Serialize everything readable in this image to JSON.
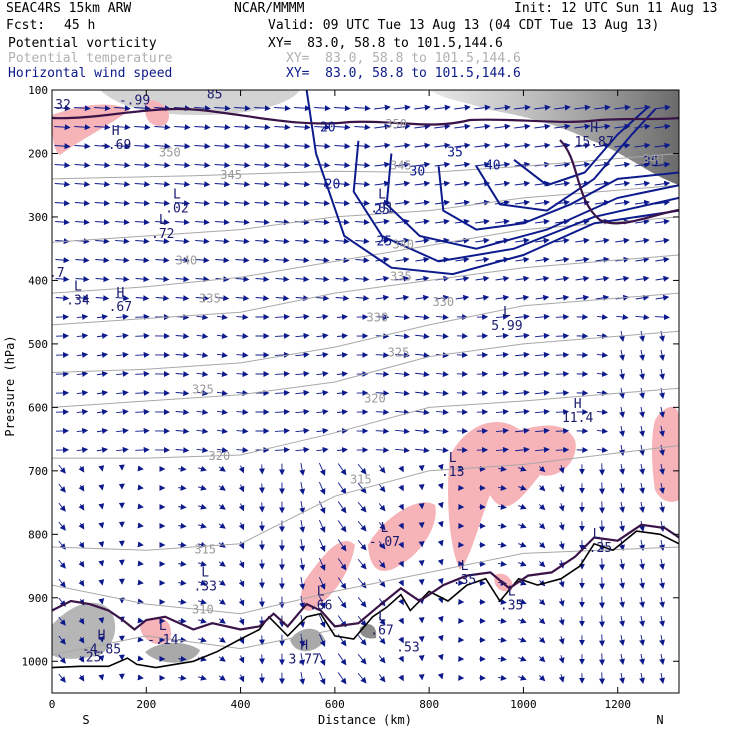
{
  "header": {
    "model": "SEAC4RS 15km ARW",
    "org": "NCAR/MMMM",
    "init": "Init: 12 UTC Sun 11 Aug 13",
    "fcst_label": "Fcst:",
    "fcst_value": "45 h",
    "valid": "Valid: 09 UTC Tue 13 Aug 13 (04 CDT Tue 13 Aug 13)",
    "fields": [
      {
        "name": "Potential vorticity",
        "xy": "XY=  83.0, 58.8 to 101.5,144.6",
        "color": "#000000"
      },
      {
        "name": "Potential temperature",
        "xy": "XY=  83.0, 58.8 to 101.5,144.6",
        "color": "#b0b0b0"
      },
      {
        "name": "Horizontal wind speed",
        "xy": "XY=  83.0, 58.8 to 101.5,144.6",
        "color": "#0d1a8c"
      }
    ]
  },
  "chart_data": {
    "type": "cross-section",
    "xlabel": "Distance (km)",
    "ylabel": "Pressure (hPa)",
    "xlim": [
      0,
      1330
    ],
    "ylim": [
      1050,
      100
    ],
    "x_ticks": [
      0,
      200,
      400,
      600,
      800,
      1000,
      1200
    ],
    "y_ticks": [
      100,
      200,
      300,
      400,
      500,
      600,
      700,
      800,
      900,
      1000
    ],
    "endpoints": {
      "left": "S",
      "right": "N"
    },
    "colors": {
      "theta": "#a8a8a8",
      "wind": "#0d1a8c",
      "pv_contour": "#3a1448",
      "pv_fill_pink": "#f6b3b8",
      "terrain": "#000000"
    },
    "wind_speed_labels": [
      {
        "text": "20",
        "x": 585,
        "p": 165
      },
      {
        "text": "20",
        "x": 595,
        "p": 255
      },
      {
        "text": "25",
        "x": 700,
        "p": 295
      },
      {
        "text": "25",
        "x": 705,
        "p": 345
      },
      {
        "text": "30",
        "x": 775,
        "p": 235
      },
      {
        "text": "35",
        "x": 855,
        "p": 205
      },
      {
        "text": "40",
        "x": 935,
        "p": 225
      },
      {
        "text": "35",
        "x": 1270,
        "p": 220
      }
    ],
    "theta_labels": [
      {
        "text": "350",
        "x": 250,
        "p": 205
      },
      {
        "text": "345",
        "x": 380,
        "p": 240
      },
      {
        "text": "345",
        "x": 740,
        "p": 225
      },
      {
        "text": "340",
        "x": 285,
        "p": 375
      },
      {
        "text": "340",
        "x": 745,
        "p": 350
      },
      {
        "text": "335",
        "x": 335,
        "p": 435
      },
      {
        "text": "335",
        "x": 740,
        "p": 400
      },
      {
        "text": "330",
        "x": 690,
        "p": 465
      },
      {
        "text": "330",
        "x": 830,
        "p": 440
      },
      {
        "text": "325",
        "x": 735,
        "p": 520
      },
      {
        "text": "325",
        "x": 320,
        "p": 578
      },
      {
        "text": "320",
        "x": 685,
        "p": 592
      },
      {
        "text": "320",
        "x": 355,
        "p": 683
      },
      {
        "text": "315",
        "x": 655,
        "p": 720
      },
      {
        "text": "315",
        "x": 325,
        "p": 830
      },
      {
        "text": "310",
        "x": 320,
        "p": 925
      },
      {
        "text": "350",
        "x": 730,
        "p": 160
      },
      {
        "text": "340",
        "x": 1275,
        "p": 215
      }
    ],
    "pv_extrema": [
      {
        "type": "H",
        "value": "-.69",
        "x": 135,
        "p": 190
      },
      {
        "type": "L",
        "value": ".02",
        "x": 265,
        "p": 290
      },
      {
        "type": "L",
        "value": ".72",
        "x": 235,
        "p": 330
      },
      {
        "type": "L",
        "value": ".34",
        "x": 55,
        "p": 435
      },
      {
        "type": "H",
        "value": ".67",
        "x": 145,
        "p": 445
      },
      {
        "type": "L",
        "value": ".01",
        "x": 700,
        "p": 290
      },
      {
        "type": "L",
        "value": "5.99",
        "x": 965,
        "p": 475
      },
      {
        "type": "H",
        "value": "11.4",
        "x": 1115,
        "p": 620
      },
      {
        "type": "L",
        "value": ".13",
        "x": 850,
        "p": 705
      },
      {
        "type": "L",
        "value": "-.07",
        "x": 705,
        "p": 815
      },
      {
        "type": "L",
        "value": ".35",
        "x": 875,
        "p": 875
      },
      {
        "type": "L",
        "value": ".35",
        "x": 975,
        "p": 915
      },
      {
        "type": "L",
        "value": "-.25",
        "x": 1155,
        "p": 825
      },
      {
        "type": "L",
        "value": ".33",
        "x": 325,
        "p": 885
      },
      {
        "type": "L",
        "value": ".66",
        "x": 570,
        "p": 915
      },
      {
        "type": "L",
        "value": ".67",
        "x": 700,
        "p": 955
      },
      {
        "type": "L",
        "value": "-.14",
        "x": 235,
        "p": 970
      },
      {
        "type": "H",
        "value": "-4.85",
        "x": 105,
        "p": 985
      },
      {
        "type": "H",
        "value": "3.77",
        "x": 535,
        "p": 1000
      },
      {
        "type": "H",
        "value": "15.87",
        "x": 1150,
        "p": 185
      },
      {
        "type": "H",
        "value": "-.99",
        "x": 175,
        "p": 120
      },
      {
        "type": "H",
        "value": "85",
        "x": 345,
        "p": 110
      }
    ],
    "extra_labels": [
      {
        "text": ".53",
        "x": 755,
        "p": 985
      },
      {
        "text": ".32",
        "x": 15,
        "p": 130
      },
      {
        "text": ".7",
        "x": 10,
        "p": 395
      },
      {
        "text": ".25",
        "x": 80,
        "p": 1000
      }
    ]
  }
}
